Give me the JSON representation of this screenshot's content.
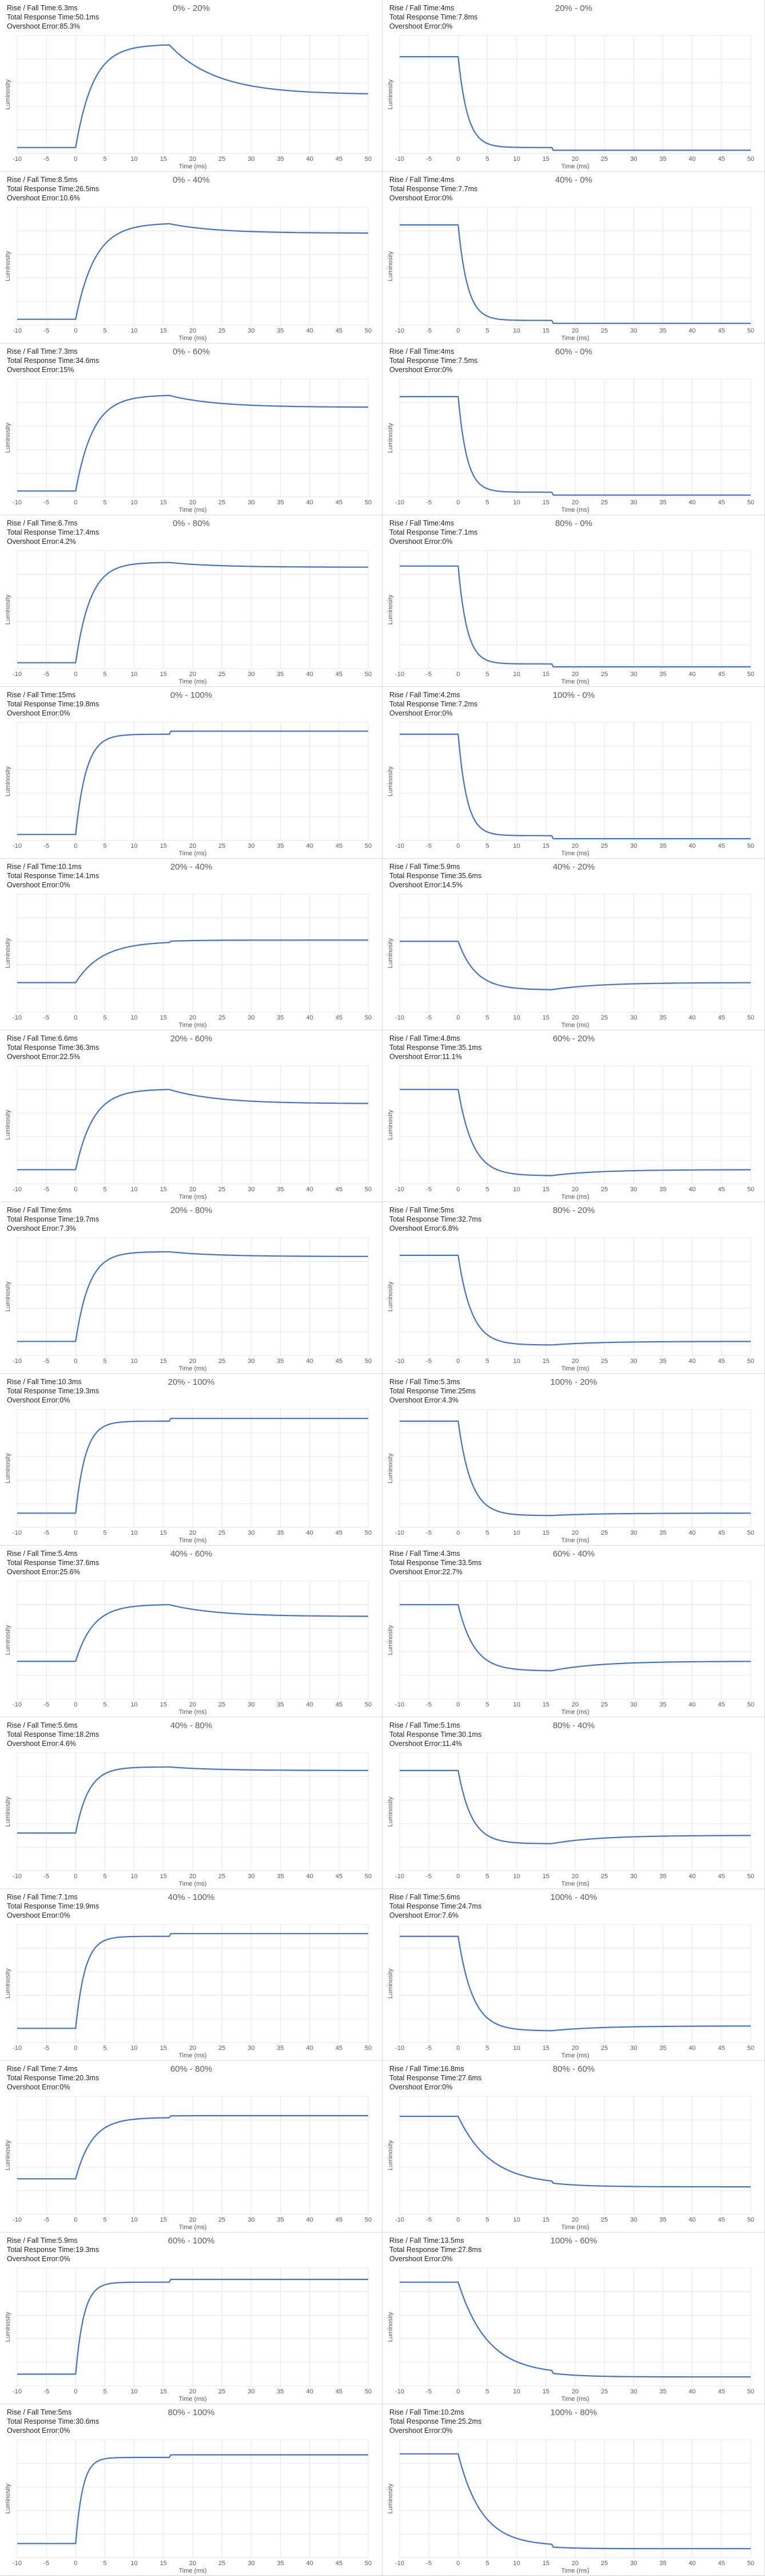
{
  "chart_common": {
    "xlabel": "Time (ms)",
    "ylabel": "Luminosity",
    "x_ticks": [
      -10,
      -5,
      0,
      5,
      10,
      15,
      20,
      25,
      30,
      35,
      40,
      45,
      50
    ],
    "xlim": [
      -10,
      50
    ],
    "ylim": [
      0,
      1
    ],
    "grid": true,
    "line_color": "#4472c4",
    "stat_labels": {
      "rise_fall": "Rise / Fall Time:",
      "total": "Total Response Time:",
      "overshoot": "Overshoot Error:"
    }
  },
  "chart_data": [
    {
      "type": "line",
      "title": "0% - 20%",
      "rise_fall": "6.3ms",
      "total": "50.1ms",
      "overshoot": "85.3%",
      "start": 0.05,
      "end": 0.5,
      "peak": 0.92,
      "tau": 3.0,
      "peak_t": 16
    },
    {
      "type": "line",
      "title": "20% - 0%",
      "rise_fall": "4ms",
      "total": "7.8ms",
      "overshoot": "0%",
      "start": 0.82,
      "end": 0.05,
      "peak": null,
      "tau": 1.6,
      "peak_t": 0
    },
    {
      "type": "line",
      "title": "0% - 40%",
      "rise_fall": "8.5ms",
      "total": "26.5ms",
      "overshoot": "10.6%",
      "start": 0.05,
      "end": 0.78,
      "peak": 0.86,
      "tau": 3.3,
      "peak_t": 16
    },
    {
      "type": "line",
      "title": "40% - 0%",
      "rise_fall": "4ms",
      "total": "7.7ms",
      "overshoot": "0%",
      "start": 0.85,
      "end": 0.04,
      "peak": null,
      "tau": 1.6,
      "peak_t": 0
    },
    {
      "type": "line",
      "title": "0% - 60%",
      "rise_fall": "7.3ms",
      "total": "34.6ms",
      "overshoot": "15%",
      "start": 0.05,
      "end": 0.76,
      "peak": 0.86,
      "tau": 3.0,
      "peak_t": 16
    },
    {
      "type": "line",
      "title": "60% - 0%",
      "rise_fall": "4ms",
      "total": "7.5ms",
      "overshoot": "0%",
      "start": 0.85,
      "end": 0.04,
      "peak": null,
      "tau": 1.5,
      "peak_t": 0
    },
    {
      "type": "line",
      "title": "0% - 80%",
      "rise_fall": "6.7ms",
      "total": "17.4ms",
      "overshoot": "4.2%",
      "start": 0.05,
      "end": 0.86,
      "peak": 0.9,
      "tau": 2.5,
      "peak_t": 16
    },
    {
      "type": "line",
      "title": "80% - 0%",
      "rise_fall": "4ms",
      "total": "7.1ms",
      "overshoot": "0%",
      "start": 0.87,
      "end": 0.04,
      "peak": null,
      "tau": 1.5,
      "peak_t": 0
    },
    {
      "type": "line",
      "title": "0% - 100%",
      "rise_fall": "15ms",
      "total": "19.8ms",
      "overshoot": "0%",
      "start": 0.05,
      "end": 0.9,
      "peak": null,
      "tau": 1.8,
      "peak_t": 0
    },
    {
      "type": "line",
      "title": "100% - 0%",
      "rise_fall": "4.2ms",
      "total": "7.2ms",
      "overshoot": "0%",
      "start": 0.9,
      "end": 0.04,
      "peak": null,
      "tau": 1.5,
      "peak_t": 0
    },
    {
      "type": "line",
      "title": "20% - 40%",
      "rise_fall": "10.1ms",
      "total": "14.1ms",
      "overshoot": "0%",
      "start": 0.25,
      "end": 0.6,
      "peak": null,
      "tau": 4.5,
      "peak_t": 0
    },
    {
      "type": "line",
      "title": "40% - 20%",
      "rise_fall": "5.9ms",
      "total": "35.6ms",
      "overshoot": "14.5%",
      "start": 0.6,
      "end": 0.25,
      "peak": 0.19,
      "tau": 3.0,
      "peak_t": 16
    },
    {
      "type": "line",
      "title": "20% - 60%",
      "rise_fall": "6.6ms",
      "total": "36.3ms",
      "overshoot": "22.5%",
      "start": 0.12,
      "end": 0.68,
      "peak": 0.8,
      "tau": 3.0,
      "peak_t": 16
    },
    {
      "type": "line",
      "title": "60% - 20%",
      "rise_fall": "4.8ms",
      "total": "35.1ms",
      "overshoot": "11.1%",
      "start": 0.8,
      "end": 0.12,
      "peak": 0.07,
      "tau": 2.5,
      "peak_t": 16
    },
    {
      "type": "line",
      "title": "20% - 80%",
      "rise_fall": "6ms",
      "total": "19.7ms",
      "overshoot": "7.3%",
      "start": 0.12,
      "end": 0.84,
      "peak": 0.88,
      "tau": 2.3,
      "peak_t": 16
    },
    {
      "type": "line",
      "title": "80% - 20%",
      "rise_fall": "5ms",
      "total": "32.7ms",
      "overshoot": "6.8%",
      "start": 0.85,
      "end": 0.12,
      "peak": 0.09,
      "tau": 2.3,
      "peak_t": 16
    },
    {
      "type": "line",
      "title": "20% - 100%",
      "rise_fall": "10.3ms",
      "total": "19.3ms",
      "overshoot": "0%",
      "start": 0.12,
      "end": 0.9,
      "peak": null,
      "tau": 1.7,
      "peak_t": 0
    },
    {
      "type": "line",
      "title": "100% - 20%",
      "rise_fall": "5.3ms",
      "total": "25ms",
      "overshoot": "4.3%",
      "start": 0.9,
      "end": 0.12,
      "peak": 0.1,
      "tau": 2.2,
      "peak_t": 16
    },
    {
      "type": "line",
      "title": "40% - 60%",
      "rise_fall": "5.4ms",
      "total": "37.6ms",
      "overshoot": "25.6%",
      "start": 0.32,
      "end": 0.7,
      "peak": 0.8,
      "tau": 3.0,
      "peak_t": 16
    },
    {
      "type": "line",
      "title": "60% - 40%",
      "rise_fall": "4.3ms",
      "total": "33.5ms",
      "overshoot": "22.7%",
      "start": 0.8,
      "end": 0.32,
      "peak": 0.24,
      "tau": 2.7,
      "peak_t": 16
    },
    {
      "type": "line",
      "title": "40% - 80%",
      "rise_fall": "5.6ms",
      "total": "18.2ms",
      "overshoot": "4.6%",
      "start": 0.32,
      "end": 0.85,
      "peak": 0.88,
      "tau": 2.2,
      "peak_t": 16
    },
    {
      "type": "line",
      "title": "80% - 40%",
      "rise_fall": "5.1ms",
      "total": "30.1ms",
      "overshoot": "11.4%",
      "start": 0.85,
      "end": 0.3,
      "peak": 0.23,
      "tau": 2.3,
      "peak_t": 16
    },
    {
      "type": "line",
      "title": "40% - 100%",
      "rise_fall": "7.1ms",
      "total": "19.9ms",
      "overshoot": "0%",
      "start": 0.12,
      "end": 0.9,
      "peak": null,
      "tau": 1.6,
      "peak_t": 0
    },
    {
      "type": "line",
      "title": "100% - 40%",
      "rise_fall": "5.6ms",
      "total": "24.7ms",
      "overshoot": "7.6%",
      "start": 0.9,
      "end": 0.14,
      "peak": 0.1,
      "tau": 2.5,
      "peak_t": 16
    },
    {
      "type": "line",
      "title": "60% - 80%",
      "rise_fall": "7.4ms",
      "total": "20.3ms",
      "overshoot": "0%",
      "start": 0.3,
      "end": 0.82,
      "peak": null,
      "tau": 2.8,
      "peak_t": 0
    },
    {
      "type": "line",
      "title": "80% - 60%",
      "rise_fall": "16.8ms",
      "total": "27.6ms",
      "overshoot": "0%",
      "start": 0.83,
      "end": 0.25,
      "peak": null,
      "tau": 5.5,
      "peak_t": 0
    },
    {
      "type": "line",
      "title": "60% - 100%",
      "rise_fall": "5.9ms",
      "total": "19.3ms",
      "overshoot": "0%",
      "start": 0.1,
      "end": 0.88,
      "peak": null,
      "tau": 1.4,
      "peak_t": 0
    },
    {
      "type": "line",
      "title": "100% - 60%",
      "rise_fall": "13.5ms",
      "total": "27.8ms",
      "overshoot": "0%",
      "start": 0.88,
      "end": 0.1,
      "peak": null,
      "tau": 5.0,
      "peak_t": 0
    },
    {
      "type": "line",
      "title": "80% - 100%",
      "rise_fall": "5ms",
      "total": "30.6ms",
      "overshoot": "0%",
      "start": 0.12,
      "end": 0.85,
      "peak": null,
      "tau": 1.2,
      "peak_t": 0
    },
    {
      "type": "line",
      "title": "100% - 80%",
      "rise_fall": "10.2ms",
      "total": "25.2ms",
      "overshoot": "0%",
      "start": 0.88,
      "end": 0.1,
      "peak": null,
      "tau": 4.0,
      "peak_t": 0
    }
  ]
}
